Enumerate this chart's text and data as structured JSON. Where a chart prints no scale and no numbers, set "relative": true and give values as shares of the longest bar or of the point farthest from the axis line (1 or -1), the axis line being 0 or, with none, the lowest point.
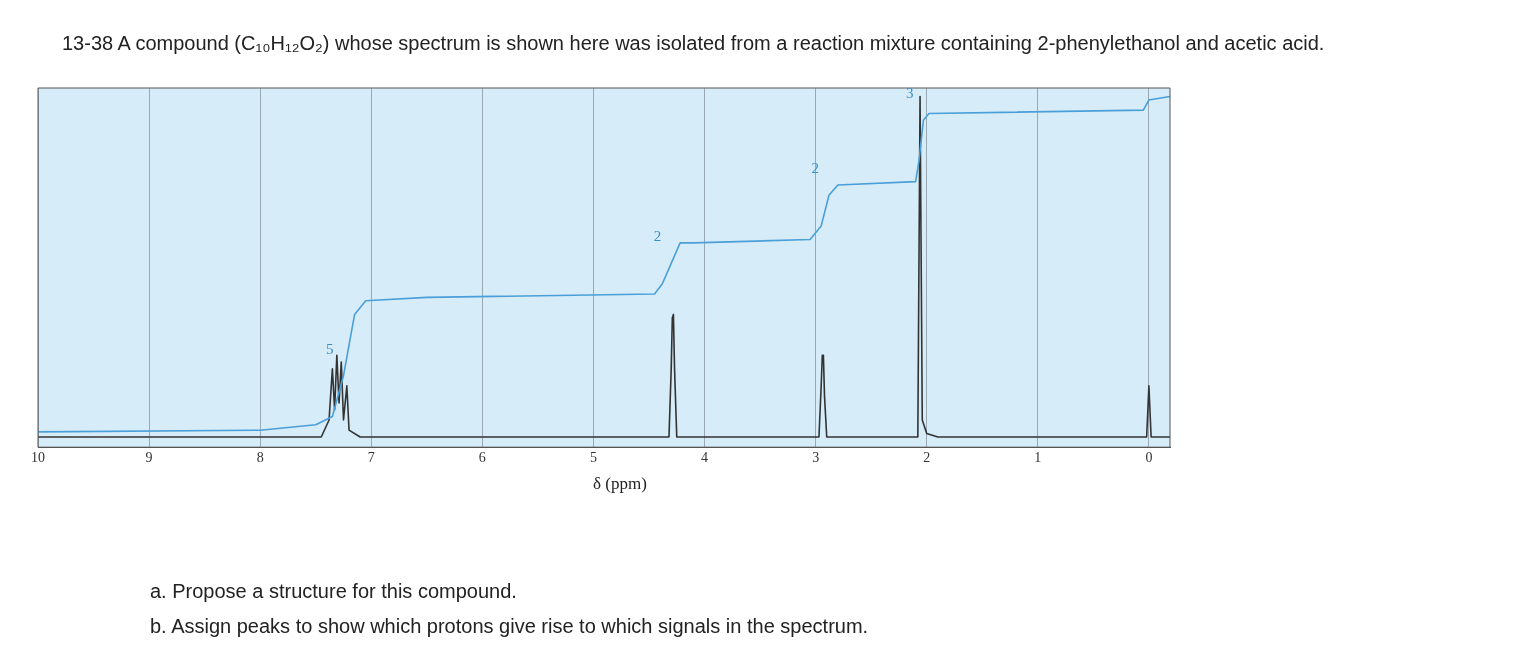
{
  "chart_data": {
    "type": "line",
    "title": "13-38 A compound (C₁₀H₁₂O₂) whose spectrum is shown here was isolated from a reaction mixture containing 2-phenylethanol and acetic acid.",
    "xlabel": "δ (ppm)",
    "relative": true,
    "xlim": [
      10,
      -0.19
    ],
    "xticks": [
      10,
      9,
      8,
      7,
      6,
      5,
      4,
      3,
      2,
      1,
      0
    ],
    "grid": "x",
    "legend": false,
    "marker": "none",
    "line_style": "solid",
    "series": [
      {
        "color": "#4a9fd8",
        "x": [
          10,
          8,
          7.5,
          7.35,
          7.25,
          7.15,
          7.05,
          6.5,
          4.45,
          4.38,
          4.3,
          4.22,
          4.1,
          3.05,
          2.95,
          2.88,
          2.8,
          2.1,
          2.07,
          2.03,
          1.98,
          0.05,
          0,
          -0.19
        ],
        "values": [
          0.015,
          0.02,
          0.036,
          0.06,
          0.18,
          0.36,
          0.4,
          0.41,
          0.42,
          0.45,
          0.51,
          0.57,
          0.57,
          0.58,
          0.62,
          0.71,
          0.74,
          0.75,
          0.81,
          0.93,
          0.95,
          0.96,
          0.99,
          1.0
        ]
      },
      {
        "color": "#333333",
        "x": [
          10,
          7.45,
          7.38,
          7.35,
          7.33,
          7.31,
          7.29,
          7.27,
          7.25,
          7.22,
          7.2,
          7.1,
          4.32,
          4.3,
          4.29,
          4.28,
          4.27,
          4.25,
          2.97,
          2.95,
          2.94,
          2.93,
          2.92,
          2.9,
          2.08,
          2.06,
          2.04,
          2.0,
          1.9,
          0.02,
          0,
          -0.02,
          -0.19
        ],
        "values": [
          0,
          0,
          0.05,
          0.2,
          0.08,
          0.24,
          0.1,
          0.22,
          0.05,
          0.15,
          0.02,
          0,
          0,
          0.2,
          0.35,
          0.36,
          0.2,
          0,
          0,
          0.15,
          0.24,
          0.24,
          0.12,
          0,
          0,
          1.0,
          0.05,
          0.01,
          0,
          0,
          0.15,
          0,
          0
        ]
      }
    ],
    "annotations": [
      {
        "text": "5",
        "x": 7.25,
        "y": 0.18
      },
      {
        "text": "2",
        "x": 4.3,
        "y": 0.51
      },
      {
        "text": "2",
        "x": 2.88,
        "y": 0.71
      },
      {
        "text": "3",
        "x": 2.03,
        "y": 0.93
      },
      "a.  Propose a structure for this compound.",
      "b.  Assign peaks to show which protons give rise to which signals in the spectrum."
    ]
  }
}
